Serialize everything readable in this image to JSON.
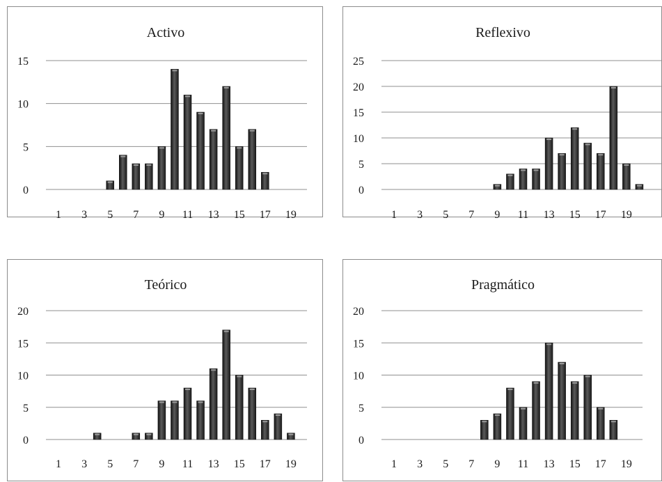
{
  "chart_data": [
    {
      "type": "bar",
      "title": "Activo",
      "xlabel": "",
      "ylabel": "",
      "categories": [
        1,
        2,
        3,
        4,
        5,
        6,
        7,
        8,
        9,
        10,
        11,
        12,
        13,
        14,
        15,
        16,
        17,
        18,
        19,
        20
      ],
      "x_tick_labels": [
        "1",
        "3",
        "5",
        "7",
        "9",
        "11",
        "13",
        "15",
        "17",
        "19"
      ],
      "values": [
        0,
        0,
        0,
        0,
        1,
        4,
        3,
        3,
        5,
        14,
        11,
        9,
        7,
        12,
        5,
        7,
        2,
        0,
        0,
        0
      ],
      "ylim": [
        0,
        15
      ],
      "y_ticks": [
        0,
        5,
        10,
        15
      ],
      "grid": true,
      "legend": "none",
      "bar_color": "#2b2b2b"
    },
    {
      "type": "bar",
      "title": "Reflexivo",
      "xlabel": "",
      "ylabel": "",
      "categories": [
        1,
        2,
        3,
        4,
        5,
        6,
        7,
        8,
        9,
        10,
        11,
        12,
        13,
        14,
        15,
        16,
        17,
        18,
        19,
        20
      ],
      "x_tick_labels": [
        "1",
        "3",
        "5",
        "7",
        "9",
        "11",
        "13",
        "15",
        "17",
        "19"
      ],
      "values": [
        0,
        0,
        0,
        0,
        0,
        0,
        0,
        0,
        1,
        3,
        4,
        4,
        10,
        7,
        12,
        9,
        7,
        20,
        5,
        1
      ],
      "ylim": [
        0,
        25
      ],
      "y_ticks": [
        0,
        5,
        10,
        15,
        20,
        25
      ],
      "grid": true,
      "legend": "none",
      "bar_color": "#2b2b2b"
    },
    {
      "type": "bar",
      "title": "Teórico",
      "xlabel": "",
      "ylabel": "",
      "categories": [
        1,
        2,
        3,
        4,
        5,
        6,
        7,
        8,
        9,
        10,
        11,
        12,
        13,
        14,
        15,
        16,
        17,
        18,
        19
      ],
      "x_tick_labels": [
        "1",
        "3",
        "5",
        "7",
        "9",
        "11",
        "13",
        "15",
        "17",
        "19"
      ],
      "values": [
        0,
        0,
        0,
        1,
        0,
        0,
        1,
        1,
        6,
        6,
        8,
        6,
        11,
        17,
        10,
        8,
        3,
        4,
        1
      ],
      "ylim": [
        0,
        20
      ],
      "y_ticks": [
        0,
        5,
        10,
        15,
        20
      ],
      "grid": true,
      "legend": "none",
      "bar_color": "#2b2b2b"
    },
    {
      "type": "bar",
      "title": "Pragmático",
      "xlabel": "",
      "ylabel": "",
      "categories": [
        1,
        2,
        3,
        4,
        5,
        6,
        7,
        8,
        9,
        10,
        11,
        12,
        13,
        14,
        15,
        16,
        17,
        18,
        19
      ],
      "x_tick_labels": [
        "1",
        "3",
        "5",
        "7",
        "9",
        "11",
        "13",
        "15",
        "17",
        "19"
      ],
      "values": [
        0,
        0,
        0,
        0,
        0,
        0,
        0,
        3,
        4,
        8,
        5,
        9,
        15,
        12,
        9,
        10,
        5,
        3,
        0
      ],
      "ylim": [
        0,
        20
      ],
      "y_ticks": [
        0,
        5,
        10,
        15,
        20
      ],
      "grid": true,
      "legend": "none",
      "bar_color": "#2b2b2b"
    }
  ]
}
